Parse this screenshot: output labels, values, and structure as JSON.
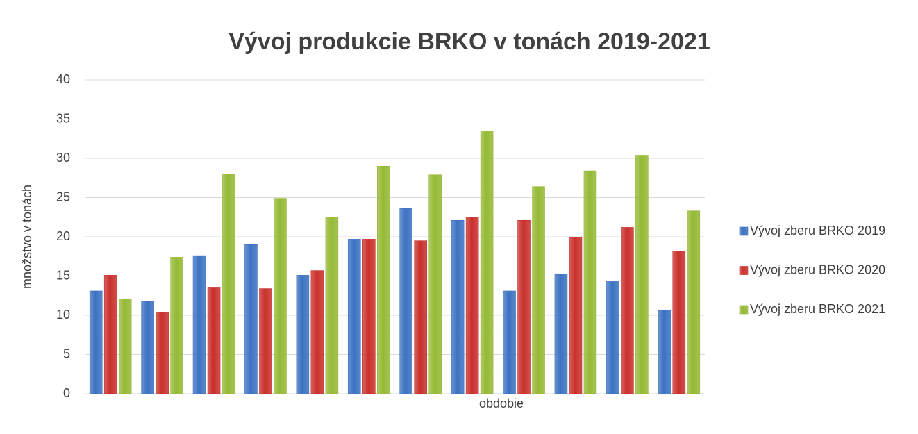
{
  "chart_data": {
    "type": "bar",
    "title": "Vývoj produkcie BRKO v tonách 2019-2021",
    "y_label": "množstvo v tonách",
    "x_label": "obdobie",
    "categories": [
      null,
      null,
      null,
      null,
      null,
      null,
      null,
      null,
      null,
      null,
      null,
      null
    ],
    "series": [
      {
        "name": "Vývoj zberu BRKO 2019",
        "color": "#3c72c2",
        "values": [
          13.1,
          11.8,
          17.6,
          19.0,
          15.1,
          19.7,
          23.6,
          22.1,
          13.1,
          15.2,
          14.3,
          10.6
        ]
      },
      {
        "name": "Vývoj zberu BRKO 2020",
        "color": "#c9302c",
        "values": [
          15.1,
          10.4,
          13.5,
          13.4,
          15.7,
          19.7,
          19.5,
          22.5,
          22.1,
          19.9,
          21.2,
          18.2
        ]
      },
      {
        "name": "Vývoj zberu BRKO 2021",
        "color": "#95b935",
        "values": [
          12.1,
          17.4,
          28.0,
          24.9,
          22.5,
          29.0,
          27.9,
          33.5,
          26.4,
          28.4,
          30.4,
          23.3
        ]
      }
    ],
    "ylim": [
      0,
      40
    ],
    "yticks": [
      0,
      5,
      10,
      15,
      20,
      25,
      30,
      35,
      40
    ],
    "grid": true,
    "legend": "right"
  }
}
